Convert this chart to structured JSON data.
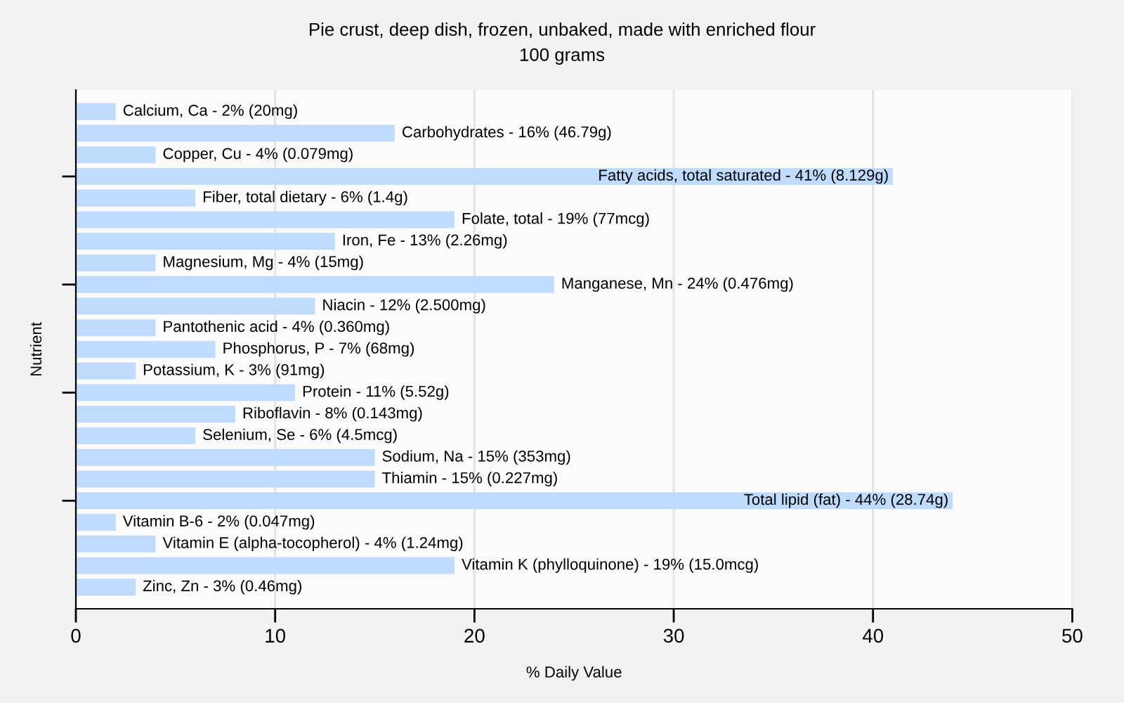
{
  "chart_data": {
    "type": "bar",
    "orientation": "horizontal",
    "title": "Pie crust, deep dish, frozen, unbaked, made with enriched flour",
    "subtitle": "100 grams",
    "xlabel": "% Daily Value",
    "ylabel": "Nutrient",
    "categories": [
      "Calcium, Ca - 2% (20mg)",
      "Carbohydrates - 16% (46.79g)",
      "Copper, Cu - 4% (0.079mg)",
      "Fatty acids, total saturated - 41% (8.129g)",
      "Fiber, total dietary - 6% (1.4g)",
      "Folate, total - 19% (77mcg)",
      "Iron, Fe - 13% (2.26mg)",
      "Magnesium, Mg - 4% (15mg)",
      "Manganese, Mn - 24% (0.476mg)",
      "Niacin - 12% (2.500mg)",
      "Pantothenic acid - 4% (0.360mg)",
      "Phosphorus, P - 7% (68mg)",
      "Potassium, K - 3% (91mg)",
      "Protein - 11% (5.52g)",
      "Riboflavin - 8% (0.143mg)",
      "Selenium, Se - 6% (4.5mcg)",
      "Sodium, Na - 15% (353mg)",
      "Thiamin - 15% (0.227mg)",
      "Total lipid (fat) - 44% (28.74g)",
      "Vitamin B-6 - 2% (0.047mg)",
      "Vitamin E (alpha-tocopherol) - 4% (1.24mg)",
      "Vitamin K (phylloquinone) - 19% (15.0mcg)",
      "Zinc, Zn - 3% (0.46mg)"
    ],
    "values": [
      2,
      16,
      4,
      41,
      6,
      19,
      13,
      4,
      24,
      12,
      4,
      7,
      3,
      11,
      8,
      6,
      15,
      15,
      44,
      2,
      4,
      19,
      3
    ],
    "color": "#bfdbff",
    "xlim": [
      0,
      50
    ],
    "xticks": [
      0,
      10,
      20,
      30,
      40,
      50
    ],
    "grid": "x"
  }
}
